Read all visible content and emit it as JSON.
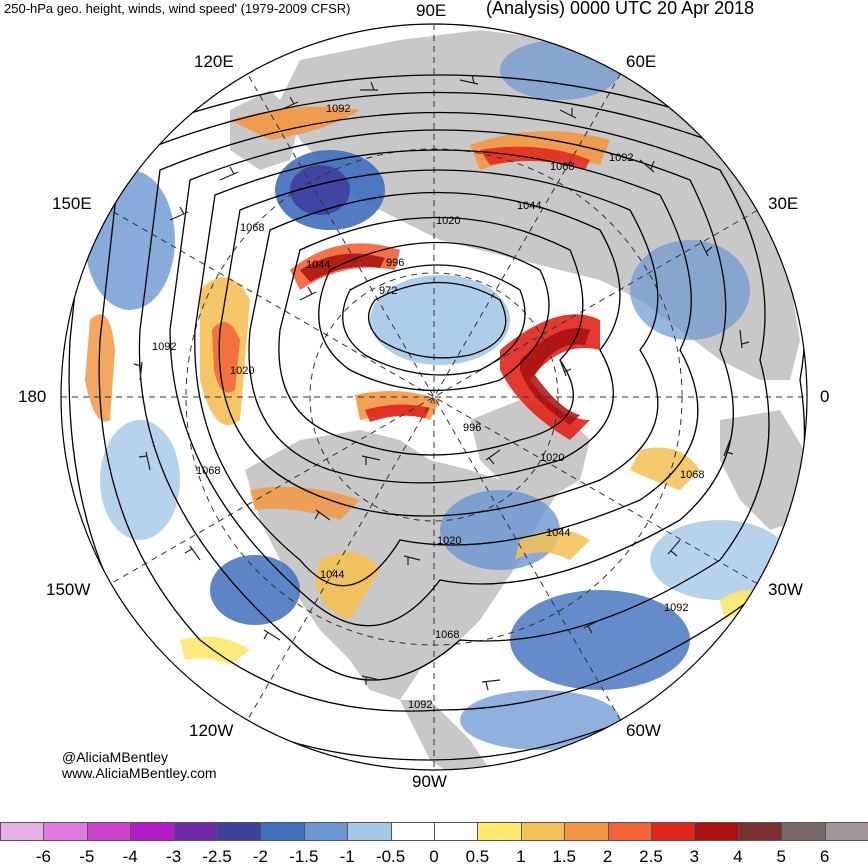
{
  "header": {
    "left_title": "250-hPa geo. height, winds, wind speed' (1979-2009 CFSR)",
    "right_title": "(Analysis) 0000 UTC 20 Apr 2018"
  },
  "map": {
    "projection": "north-polar-stereographic",
    "longitude_labels": [
      "90E",
      "60E",
      "30E",
      "0",
      "30W",
      "60W",
      "90W",
      "120W",
      "150W",
      "180",
      "150E",
      "120E"
    ],
    "contour_labels": [
      "1092",
      "1068",
      "1044",
      "1020",
      "996",
      "972",
      "1068",
      "1092",
      "1020",
      "1044",
      "1092",
      "1020",
      "996",
      "1020",
      "1068",
      "1068",
      "1020",
      "1044",
      "1044",
      "1068",
      "1092",
      "1092"
    ],
    "colors": {
      "ocean_background": "#ffffff",
      "land": "#c8c8c8",
      "height_contour": "#000000",
      "graticule": "#333333"
    }
  },
  "credits": {
    "handle": "@AliciaMBentley",
    "website": "www.AliciaMBentley.com"
  },
  "colorbar": {
    "tick_labels": [
      "-6",
      "-5",
      "-4",
      "-3",
      "-2.5",
      "-2",
      "-1.5",
      "-1",
      "-0.5",
      "0",
      "0.5",
      "1",
      "1.5",
      "2",
      "2.5",
      "3",
      "4",
      "5",
      "6"
    ],
    "colors": [
      "#e7b0e7",
      "#e07ae0",
      "#cc44cc",
      "#b31bc8",
      "#7029a8",
      "#3f3f9d",
      "#3f6ebd",
      "#6b96d2",
      "#a4c8e6",
      "#ffffff",
      "#ffffff",
      "#fde86d",
      "#f5c055",
      "#f39643",
      "#f16236",
      "#e1241b",
      "#a9100f",
      "#7c3030",
      "#776767",
      "#a39696"
    ]
  }
}
